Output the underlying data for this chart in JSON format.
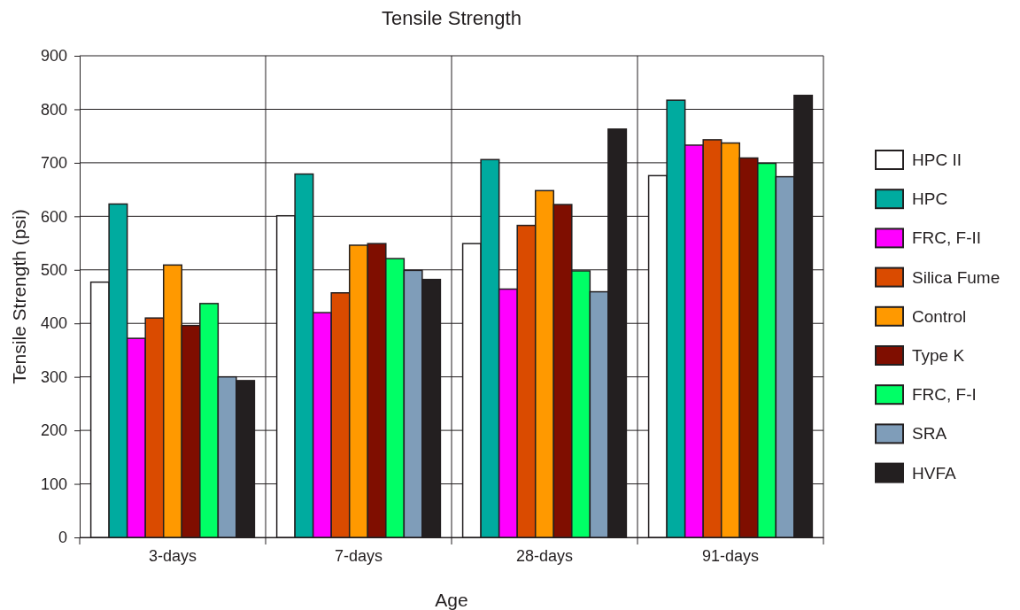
{
  "chart_data": {
    "type": "bar",
    "title": "Tensile Strength",
    "xlabel": "Age",
    "ylabel": "Tensile Strength (psi)",
    "categories": [
      "3-days",
      "7-days",
      "28-days",
      "91-days"
    ],
    "series": [
      {
        "name": "HPC II",
        "color": "#ffffff",
        "values": [
          477,
          601,
          549,
          676
        ]
      },
      {
        "name": "HPC",
        "color": "#00ab9f",
        "values": [
          623,
          679,
          706,
          817
        ]
      },
      {
        "name": "FRC, F-II",
        "color": "#ff00ff",
        "values": [
          372,
          420,
          464,
          733
        ]
      },
      {
        "name": "Silica Fume",
        "color": "#da4b00",
        "values": [
          410,
          457,
          583,
          743
        ]
      },
      {
        "name": "Control",
        "color": "#ff9900",
        "values": [
          509,
          546,
          648,
          737
        ]
      },
      {
        "name": "Type K",
        "color": "#7f0e00",
        "values": [
          396,
          549,
          622,
          709
        ]
      },
      {
        "name": "FRC, F-I",
        "color": "#00ff66",
        "values": [
          437,
          521,
          498,
          699
        ]
      },
      {
        "name": "SRA",
        "color": "#7f9db9",
        "values": [
          300,
          499,
          459,
          674
        ]
      },
      {
        "name": "HVFA",
        "color": "#231f20",
        "values": [
          293,
          482,
          763,
          826
        ]
      }
    ],
    "ylim": [
      0,
      900
    ],
    "yticks": [
      0,
      100,
      200,
      300,
      400,
      500,
      600,
      700,
      800,
      900
    ],
    "grid": true,
    "legend": "right"
  }
}
